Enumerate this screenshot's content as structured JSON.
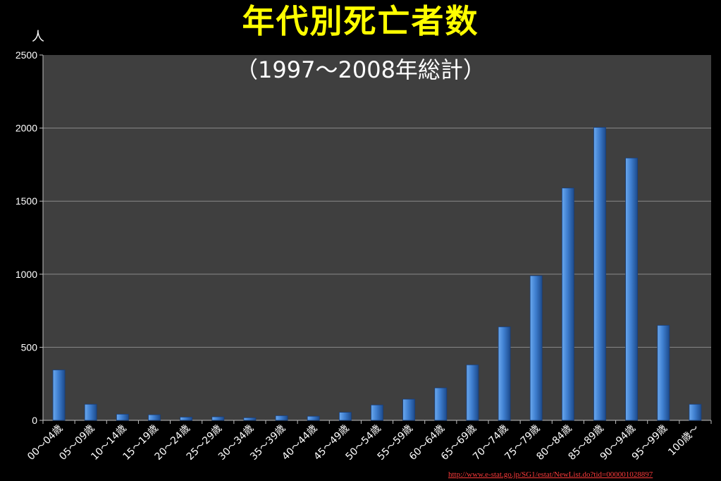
{
  "page": {
    "title": "年代別死亡者数",
    "subtitle": "（1997～2008年総計）",
    "source_url": "http://www.e-stat.go.jp/SG1/estat/NewList.do?tid=000001028897"
  },
  "colors": {
    "background": "#000000",
    "plot_background": "#3f3f3f",
    "gridline": "#8a8a8a",
    "title": "#ffff00",
    "text": "#ffffff",
    "bar_light": "#4f8fdc",
    "bar_dark": "#1f4f93",
    "link": "#ff3b3b"
  },
  "chart_data": {
    "type": "bar",
    "title": "年代別死亡者数",
    "subtitle": "（1997～2008年総計）",
    "ylabel": "人",
    "xlabel": "",
    "ylim": [
      0,
      2500
    ],
    "yticks": [
      0,
      500,
      1000,
      1500,
      2000,
      2500
    ],
    "grid": true,
    "legend": "none",
    "categories": [
      "00～04歳",
      "05～09歳",
      "10～14歳",
      "15～19歳",
      "20～24歳",
      "25～29歳",
      "30～34歳",
      "35～39歳",
      "40～44歳",
      "45～49歳",
      "50～54歳",
      "55～59歳",
      "60～64歳",
      "65～69歳",
      "70～74歳",
      "75～79歳",
      "80～84歳",
      "85～89歳",
      "90～94歳",
      "95～99歳",
      "100歳～"
    ],
    "values": [
      345,
      110,
      42,
      38,
      22,
      24,
      18,
      32,
      28,
      55,
      105,
      145,
      222,
      380,
      640,
      990,
      1590,
      2005,
      1795,
      650,
      110
    ]
  }
}
